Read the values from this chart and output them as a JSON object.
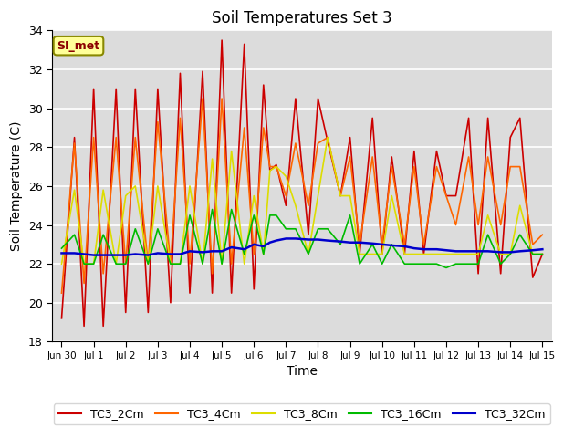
{
  "title": "Soil Temperatures Set 3",
  "xlabel": "Time",
  "ylabel": "Soil Temperature (C)",
  "ylim": [
    18,
    34
  ],
  "yticks": [
    18,
    20,
    22,
    24,
    26,
    28,
    30,
    32,
    34
  ],
  "bg_color": "#dcdcdc",
  "annotation_text": "SI_met",
  "annotation_bg": "#ffff99",
  "annotation_border": "#888800",
  "annotation_text_color": "#8b0000",
  "x_labels": [
    "Jun 30",
    "Jul 1",
    "Jul 2",
    "Jul 3",
    "Jul 4",
    "Jul 5",
    "Jul 6",
    "Jul 7",
    "Jul 8",
    "Jul 9",
    "Jul 10",
    "Jul 11",
    "Jul 12",
    "Jul 13",
    "Jul 14",
    "Jul 15"
  ],
  "series": {
    "TC3_2Cm": {
      "color": "#cc0000",
      "lw": 1.2,
      "data_x": [
        0.0,
        0.4,
        0.7,
        1.0,
        1.3,
        1.7,
        2.0,
        2.3,
        2.7,
        3.0,
        3.4,
        3.7,
        4.0,
        4.4,
        4.7,
        5.0,
        5.3,
        5.7,
        6.0,
        6.3,
        6.5,
        6.7,
        7.0,
        7.3,
        7.7,
        8.0,
        8.3,
        8.7,
        9.0,
        9.3,
        9.7,
        10.0,
        10.3,
        10.7,
        11.0,
        11.3,
        11.7,
        12.0,
        12.3,
        12.7,
        13.0,
        13.3,
        13.7,
        14.0,
        14.3,
        14.7,
        15.0
      ],
      "data_y": [
        19.2,
        28.5,
        18.8,
        31.0,
        18.8,
        31.0,
        19.5,
        31.0,
        19.5,
        31.0,
        20.0,
        31.8,
        20.5,
        31.9,
        20.5,
        33.5,
        20.5,
        33.3,
        20.7,
        31.2,
        26.8,
        27.1,
        25.0,
        30.5,
        23.5,
        30.5,
        28.3,
        25.5,
        28.5,
        22.5,
        29.5,
        22.5,
        27.5,
        22.5,
        27.8,
        22.5,
        27.8,
        25.5,
        25.5,
        29.5,
        21.5,
        29.5,
        21.5,
        28.5,
        29.5,
        21.3,
        22.5
      ]
    },
    "TC3_4Cm": {
      "color": "#ff6600",
      "lw": 1.2,
      "data_x": [
        0.0,
        0.4,
        0.7,
        1.0,
        1.3,
        1.7,
        2.0,
        2.3,
        2.7,
        3.0,
        3.4,
        3.7,
        4.0,
        4.4,
        4.7,
        5.0,
        5.3,
        5.7,
        6.0,
        6.3,
        6.5,
        6.7,
        7.0,
        7.3,
        7.7,
        8.0,
        8.3,
        8.7,
        9.0,
        9.3,
        9.7,
        10.0,
        10.3,
        10.7,
        11.0,
        11.3,
        11.7,
        12.0,
        12.3,
        12.7,
        13.0,
        13.3,
        13.7,
        14.0,
        14.3,
        14.7,
        15.0
      ],
      "data_y": [
        20.5,
        28.2,
        21.0,
        28.5,
        21.5,
        28.5,
        22.0,
        28.5,
        22.0,
        29.3,
        22.0,
        29.5,
        22.0,
        30.5,
        21.5,
        30.5,
        22.0,
        29.0,
        22.5,
        29.0,
        27.0,
        27.0,
        25.5,
        28.2,
        25.0,
        28.2,
        28.5,
        25.5,
        27.5,
        23.0,
        27.5,
        23.0,
        27.0,
        23.0,
        27.0,
        23.0,
        27.0,
        25.5,
        24.0,
        27.5,
        24.0,
        27.5,
        24.0,
        27.0,
        27.0,
        23.0,
        23.5
      ]
    },
    "TC3_8Cm": {
      "color": "#dddd00",
      "lw": 1.2,
      "data_x": [
        0.0,
        0.4,
        0.7,
        1.0,
        1.3,
        1.7,
        2.0,
        2.3,
        2.7,
        3.0,
        3.4,
        3.7,
        4.0,
        4.4,
        4.7,
        5.0,
        5.3,
        5.7,
        6.0,
        6.3,
        6.5,
        6.7,
        7.0,
        7.3,
        7.7,
        8.0,
        8.3,
        8.7,
        9.0,
        9.3,
        9.7,
        10.0,
        10.3,
        10.7,
        11.0,
        11.3,
        11.7,
        12.0,
        12.3,
        12.7,
        13.0,
        13.3,
        13.7,
        14.0,
        14.3,
        14.7,
        15.0
      ],
      "data_y": [
        22.0,
        25.8,
        22.0,
        22.0,
        25.8,
        22.0,
        25.5,
        26.0,
        22.0,
        26.0,
        22.0,
        22.0,
        26.0,
        22.0,
        27.4,
        22.0,
        27.8,
        22.0,
        25.5,
        22.5,
        26.8,
        27.0,
        26.5,
        25.0,
        22.5,
        25.5,
        28.5,
        25.5,
        25.5,
        22.5,
        22.5,
        22.5,
        25.5,
        22.5,
        22.5,
        22.5,
        22.5,
        22.5,
        22.5,
        22.5,
        22.5,
        24.5,
        22.5,
        22.5,
        25.0,
        22.5,
        22.5
      ]
    },
    "TC3_16Cm": {
      "color": "#00bb00",
      "lw": 1.2,
      "data_x": [
        0.0,
        0.4,
        0.7,
        1.0,
        1.3,
        1.7,
        2.0,
        2.3,
        2.7,
        3.0,
        3.4,
        3.7,
        4.0,
        4.4,
        4.7,
        5.0,
        5.3,
        5.7,
        6.0,
        6.3,
        6.5,
        6.7,
        7.0,
        7.3,
        7.7,
        8.0,
        8.3,
        8.7,
        9.0,
        9.3,
        9.7,
        10.0,
        10.3,
        10.7,
        11.0,
        11.3,
        11.7,
        12.0,
        12.3,
        12.7,
        13.0,
        13.3,
        13.7,
        14.0,
        14.3,
        14.7,
        15.0
      ],
      "data_y": [
        22.8,
        23.5,
        22.0,
        22.0,
        23.5,
        22.0,
        22.0,
        23.8,
        22.0,
        23.8,
        22.0,
        22.0,
        24.5,
        22.0,
        24.8,
        22.0,
        24.8,
        22.5,
        24.5,
        22.5,
        24.5,
        24.5,
        23.8,
        23.8,
        22.5,
        23.8,
        23.8,
        23.0,
        24.5,
        22.0,
        23.0,
        22.0,
        23.0,
        22.0,
        22.0,
        22.0,
        22.0,
        21.8,
        22.0,
        22.0,
        22.0,
        23.5,
        22.0,
        22.5,
        23.5,
        22.5,
        22.5
      ]
    },
    "TC3_32Cm": {
      "color": "#0000cc",
      "lw": 1.8,
      "data_x": [
        0.0,
        0.4,
        0.7,
        1.0,
        1.3,
        1.7,
        2.0,
        2.3,
        2.7,
        3.0,
        3.4,
        3.7,
        4.0,
        4.4,
        4.7,
        5.0,
        5.3,
        5.7,
        6.0,
        6.3,
        6.5,
        6.7,
        7.0,
        7.3,
        7.7,
        8.0,
        8.3,
        8.7,
        9.0,
        9.3,
        9.7,
        10.0,
        10.3,
        10.7,
        11.0,
        11.3,
        11.7,
        12.0,
        12.3,
        12.7,
        13.0,
        13.3,
        13.7,
        14.0,
        14.3,
        14.7,
        15.0
      ],
      "data_y": [
        22.55,
        22.55,
        22.5,
        22.45,
        22.45,
        22.45,
        22.45,
        22.5,
        22.45,
        22.55,
        22.5,
        22.5,
        22.65,
        22.6,
        22.65,
        22.65,
        22.85,
        22.75,
        23.0,
        22.9,
        23.1,
        23.2,
        23.3,
        23.3,
        23.25,
        23.25,
        23.2,
        23.15,
        23.1,
        23.1,
        23.05,
        23.0,
        22.95,
        22.9,
        22.8,
        22.75,
        22.75,
        22.7,
        22.65,
        22.65,
        22.65,
        22.65,
        22.6,
        22.6,
        22.65,
        22.7,
        22.75
      ]
    }
  },
  "legend_entries": [
    "TC3_2Cm",
    "TC3_4Cm",
    "TC3_8Cm",
    "TC3_16Cm",
    "TC3_32Cm"
  ],
  "legend_colors": [
    "#cc0000",
    "#ff6600",
    "#dddd00",
    "#00bb00",
    "#0000cc"
  ]
}
